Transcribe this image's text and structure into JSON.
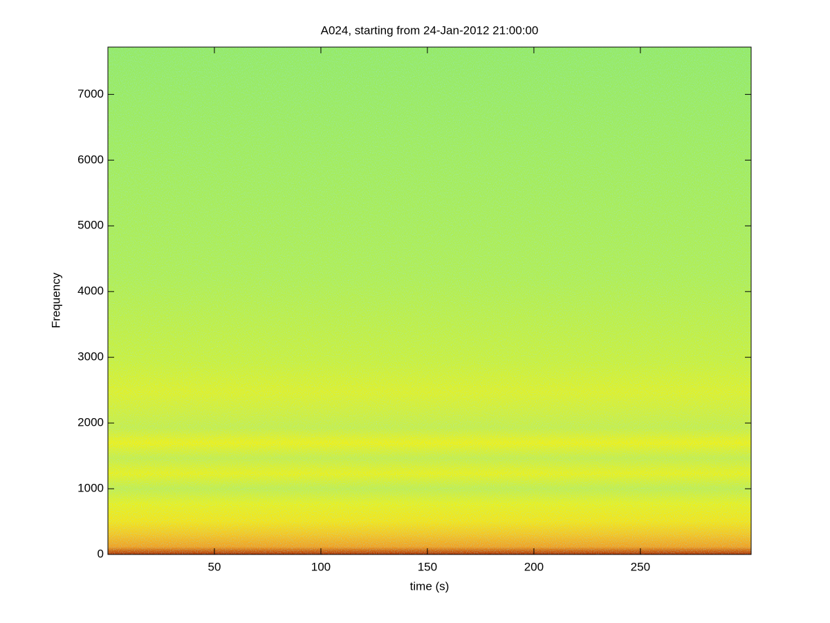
{
  "chart_data": {
    "type": "spectrogram",
    "title": "A024, starting from 24-Jan-2012 21:00:00",
    "xlabel": "time (s)",
    "ylabel": "Frequency",
    "xlim": [
      0,
      302
    ],
    "xticks": [
      50,
      100,
      150,
      200,
      250
    ],
    "ylim": [
      0,
      7720
    ],
    "yticks": [
      0,
      1000,
      2000,
      3000,
      4000,
      5000,
      6000,
      7000
    ]
  }
}
